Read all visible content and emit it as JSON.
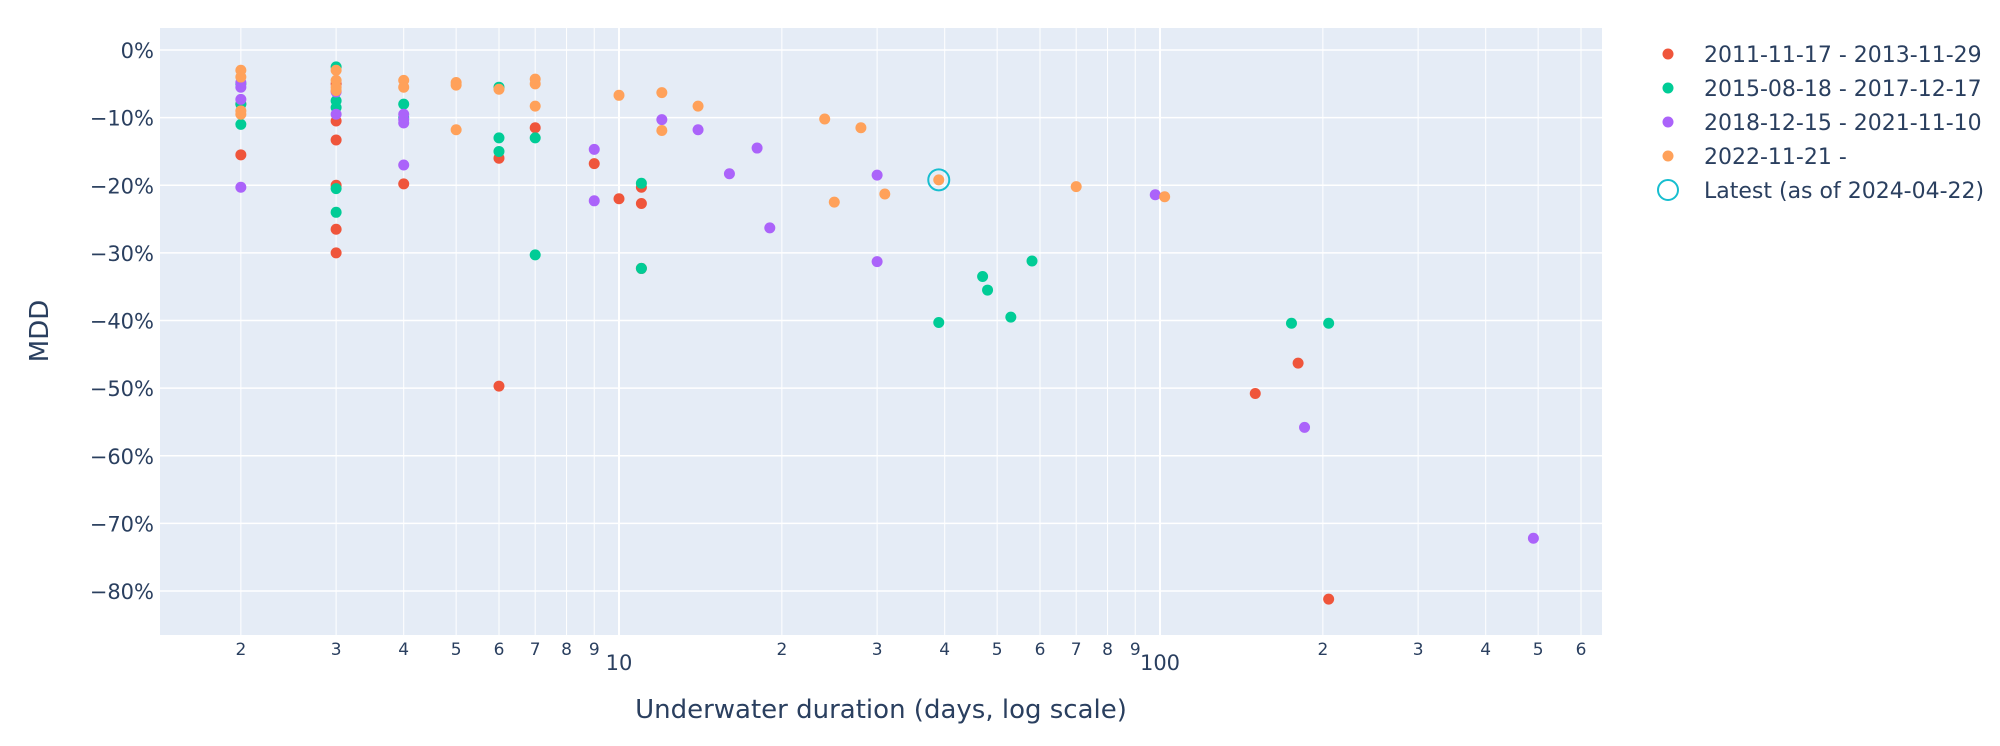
{
  "chart_data": {
    "type": "scatter",
    "title": "",
    "xlabel": "Underwater duration (days, log scale)",
    "ylabel": "MDD",
    "x_scale": "log",
    "xlim": [
      1.5,
      700
    ],
    "ylim": [
      -87,
      3
    ],
    "grid": true,
    "legend_position": "right",
    "y_ticks": [
      {
        "value": 0,
        "label": "0%"
      },
      {
        "value": -10,
        "label": "−10%"
      },
      {
        "value": -20,
        "label": "−20%"
      },
      {
        "value": -30,
        "label": "−30%"
      },
      {
        "value": -40,
        "label": "−40%"
      },
      {
        "value": -50,
        "label": "−50%"
      },
      {
        "value": -60,
        "label": "−60%"
      },
      {
        "value": -70,
        "label": "−70%"
      },
      {
        "value": -80,
        "label": "−80%"
      }
    ],
    "x_ticks": [
      {
        "value": 2,
        "label": "2",
        "major": false
      },
      {
        "value": 3,
        "label": "3",
        "major": false
      },
      {
        "value": 4,
        "label": "4",
        "major": false
      },
      {
        "value": 5,
        "label": "5",
        "major": false
      },
      {
        "value": 6,
        "label": "6",
        "major": false
      },
      {
        "value": 7,
        "label": "7",
        "major": false
      },
      {
        "value": 8,
        "label": "8",
        "major": false
      },
      {
        "value": 9,
        "label": "9",
        "major": false
      },
      {
        "value": 10,
        "label": "10",
        "major": true
      },
      {
        "value": 20,
        "label": "2",
        "major": false
      },
      {
        "value": 30,
        "label": "3",
        "major": false
      },
      {
        "value": 40,
        "label": "4",
        "major": false
      },
      {
        "value": 50,
        "label": "5",
        "major": false
      },
      {
        "value": 60,
        "label": "6",
        "major": false
      },
      {
        "value": 70,
        "label": "7",
        "major": false
      },
      {
        "value": 80,
        "label": "8",
        "major": false
      },
      {
        "value": 90,
        "label": "9",
        "major": false
      },
      {
        "value": 100,
        "label": "100",
        "major": true
      },
      {
        "value": 200,
        "label": "2",
        "major": false
      },
      {
        "value": 300,
        "label": "3",
        "major": false
      },
      {
        "value": 400,
        "label": "4",
        "major": false
      },
      {
        "value": 500,
        "label": "5",
        "major": false
      },
      {
        "value": 600,
        "label": "6",
        "major": false
      }
    ],
    "series": [
      {
        "name": "2011-11-17 - 2013-11-29",
        "color": "#EF553B",
        "points": [
          [
            2,
            -15.5
          ],
          [
            2,
            -8
          ],
          [
            3,
            -10.5
          ],
          [
            3,
            -13.3
          ],
          [
            3,
            -20
          ],
          [
            3,
            -26.5
          ],
          [
            3,
            -30
          ],
          [
            3,
            -5
          ],
          [
            4,
            -19.8
          ],
          [
            6,
            -16
          ],
          [
            6,
            -49.7
          ],
          [
            7,
            -11.5
          ],
          [
            9,
            -16.8
          ],
          [
            10,
            -22
          ],
          [
            11,
            -22.7
          ],
          [
            11,
            -20.3
          ],
          [
            11,
            -32.3
          ],
          [
            150,
            -50.8
          ],
          [
            180,
            -46.3
          ],
          [
            205,
            -81.2
          ]
        ]
      },
      {
        "name": "2015-08-18 - 2017-12-17",
        "color": "#00CC96",
        "points": [
          [
            2,
            -11
          ],
          [
            2,
            -8
          ],
          [
            2,
            -5
          ],
          [
            3,
            -2.5
          ],
          [
            3,
            -7.5
          ],
          [
            3,
            -8.5
          ],
          [
            3,
            -20.5
          ],
          [
            3,
            -24
          ],
          [
            4,
            -8
          ],
          [
            4,
            -10
          ],
          [
            6,
            -5.5
          ],
          [
            6,
            -13
          ],
          [
            6,
            -15
          ],
          [
            7,
            -13
          ],
          [
            7,
            -30.3
          ],
          [
            11,
            -19.7
          ],
          [
            11,
            -32.3
          ],
          [
            39,
            -40.3
          ],
          [
            47,
            -33.5
          ],
          [
            48,
            -35.5
          ],
          [
            53,
            -39.5
          ],
          [
            58,
            -31.2
          ],
          [
            175,
            -40.4
          ],
          [
            205,
            -40.4
          ]
        ]
      },
      {
        "name": "2018-12-15 - 2021-11-10",
        "color": "#AB63FA",
        "points": [
          [
            2,
            -7.3
          ],
          [
            2,
            -5.5
          ],
          [
            2,
            -20.3
          ],
          [
            2,
            -4.8
          ],
          [
            3,
            -9.5
          ],
          [
            3,
            -6.2
          ],
          [
            4,
            -10.3
          ],
          [
            4,
            -9.5
          ],
          [
            4,
            -17
          ],
          [
            4,
            -10.8
          ],
          [
            9,
            -14.7
          ],
          [
            9,
            -22.3
          ],
          [
            12,
            -10.3
          ],
          [
            14,
            -11.8
          ],
          [
            16,
            -18.3
          ],
          [
            18,
            -14.5
          ],
          [
            19,
            -26.3
          ],
          [
            30,
            -18.5
          ],
          [
            30,
            -31.3
          ],
          [
            98,
            -21.4
          ],
          [
            185,
            -55.8
          ],
          [
            490,
            -72.2
          ]
        ]
      },
      {
        "name": "2022-11-21 -",
        "color": "#FFA15A",
        "points": [
          [
            2,
            -3
          ],
          [
            2,
            -4
          ],
          [
            2,
            -9
          ],
          [
            2,
            -9.5
          ],
          [
            3,
            -3
          ],
          [
            3,
            -4.5
          ],
          [
            3,
            -5.5
          ],
          [
            3,
            -6
          ],
          [
            4,
            -4.5
          ],
          [
            4,
            -5.5
          ],
          [
            5,
            -4.8
          ],
          [
            5,
            -5.2
          ],
          [
            5,
            -11.8
          ],
          [
            6,
            -5.8
          ],
          [
            7,
            -4.3
          ],
          [
            7,
            -5
          ],
          [
            7,
            -8.3
          ],
          [
            10,
            -6.7
          ],
          [
            12,
            -6.3
          ],
          [
            12,
            -11.9
          ],
          [
            14,
            -8.3
          ],
          [
            24,
            -10.2
          ],
          [
            25,
            -22.5
          ],
          [
            28,
            -11.5
          ],
          [
            31,
            -21.3
          ],
          [
            39,
            -19.2
          ],
          [
            70,
            -20.2
          ],
          [
            102,
            -21.7
          ]
        ]
      }
    ],
    "latest": {
      "name": "Latest (as of 2024-04-22)",
      "color": "#17BECF",
      "x": 39,
      "y": -19.2
    }
  }
}
